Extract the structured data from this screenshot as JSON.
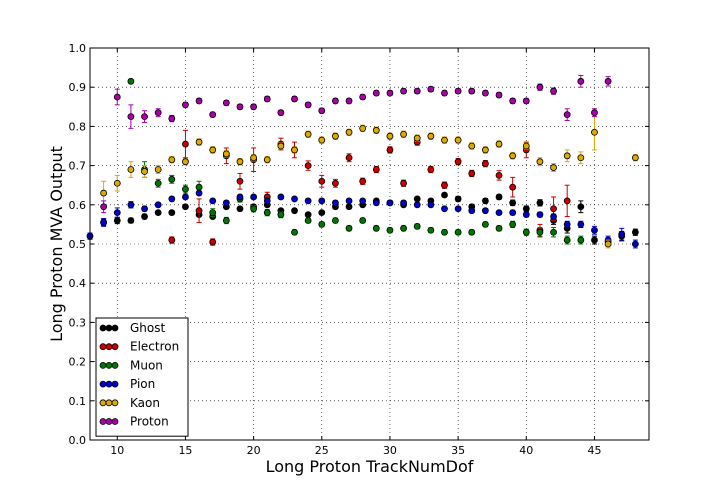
{
  "chart_data": {
    "type": "scatter",
    "xlabel": "Long Proton TrackNumDof",
    "ylabel": "Long Proton MVA Output",
    "xlim": [
      8,
      49
    ],
    "ylim": [
      0.0,
      1.0
    ],
    "xticks": [
      "10",
      "15",
      "20",
      "25",
      "30",
      "35",
      "40",
      "45"
    ],
    "yticks": [
      "0.0",
      "0.1",
      "0.2",
      "0.3",
      "0.4",
      "0.5",
      "0.6",
      "0.7",
      "0.8",
      "0.9",
      "1.0"
    ],
    "grid": true,
    "legend_position": "bottom-left",
    "series": [
      {
        "name": "Ghost",
        "color": "#000000",
        "x": [
          9,
          10,
          11,
          12,
          13,
          14,
          15,
          16,
          17,
          18,
          19,
          20,
          21,
          22,
          23,
          24,
          25,
          26,
          27,
          28,
          29,
          30,
          31,
          32,
          33,
          34,
          35,
          36,
          37,
          38,
          39,
          40,
          41,
          42,
          43,
          44,
          45,
          46,
          47,
          48
        ],
        "y": [
          0.555,
          0.56,
          0.56,
          0.57,
          0.58,
          0.58,
          0.595,
          0.575,
          0.57,
          0.595,
          0.59,
          0.595,
          0.6,
          0.585,
          0.585,
          0.575,
          0.58,
          0.595,
          0.595,
          0.6,
          0.61,
          0.605,
          0.6,
          0.615,
          0.61,
          0.625,
          0.615,
          0.595,
          0.61,
          0.62,
          0.605,
          0.59,
          0.605,
          0.56,
          0.54,
          0.595,
          0.51,
          0.505,
          0.52,
          0.53
        ],
        "err": [
          0.008,
          0.008,
          0.006,
          0.006,
          0.005,
          0.005,
          0.005,
          0.005,
          0.005,
          0.005,
          0.005,
          0.005,
          0.005,
          0.005,
          0.005,
          0.005,
          0.005,
          0.005,
          0.005,
          0.005,
          0.005,
          0.005,
          0.005,
          0.005,
          0.005,
          0.005,
          0.006,
          0.006,
          0.006,
          0.006,
          0.007,
          0.007,
          0.008,
          0.01,
          0.012,
          0.015,
          0.01,
          0.01,
          0.012,
          0.008
        ]
      },
      {
        "name": "Electron",
        "color": "#cc0000",
        "x": [
          14,
          15,
          16,
          17,
          18,
          19,
          20,
          21,
          22,
          23,
          24,
          25,
          26,
          27,
          28,
          29,
          30,
          31,
          32,
          33,
          34,
          35,
          36,
          37,
          38,
          39,
          40,
          41,
          42,
          43
        ],
        "y": [
          0.51,
          0.755,
          0.585,
          0.505,
          0.725,
          0.66,
          0.715,
          0.62,
          0.755,
          0.74,
          0.7,
          0.66,
          0.655,
          0.72,
          0.66,
          0.69,
          0.74,
          0.655,
          0.76,
          0.69,
          0.65,
          0.71,
          0.68,
          0.705,
          0.675,
          0.645,
          0.74,
          0.535,
          0.59,
          0.61
        ],
        "err": [
          0.008,
          0.035,
          0.03,
          0.008,
          0.02,
          0.02,
          0.03,
          0.012,
          0.015,
          0.02,
          0.012,
          0.015,
          0.01,
          0.01,
          0.008,
          0.008,
          0.008,
          0.008,
          0.008,
          0.008,
          0.008,
          0.008,
          0.008,
          0.008,
          0.012,
          0.025,
          0.02,
          0.015,
          0.03,
          0.04
        ]
      },
      {
        "name": "Muon",
        "color": "#007700",
        "x": [
          11,
          12,
          13,
          14,
          15,
          16,
          17,
          18,
          19,
          20,
          21,
          22,
          23,
          24,
          25,
          26,
          27,
          28,
          29,
          30,
          31,
          32,
          33,
          34,
          35,
          36,
          37,
          38,
          39,
          40,
          41,
          42,
          43,
          44
        ],
        "y": [
          0.915,
          0.69,
          0.655,
          0.665,
          0.64,
          0.645,
          0.58,
          0.56,
          0.615,
          0.59,
          0.58,
          0.575,
          0.53,
          0.56,
          0.55,
          0.56,
          0.54,
          0.56,
          0.54,
          0.535,
          0.54,
          0.545,
          0.535,
          0.53,
          0.53,
          0.53,
          0.55,
          0.54,
          0.55,
          0.53,
          0.53,
          0.53,
          0.51,
          0.51
        ],
        "err": [
          0.005,
          0.02,
          0.01,
          0.01,
          0.01,
          0.015,
          0.01,
          0.008,
          0.008,
          0.008,
          0.008,
          0.008,
          0.006,
          0.006,
          0.006,
          0.006,
          0.006,
          0.006,
          0.006,
          0.006,
          0.006,
          0.006,
          0.006,
          0.006,
          0.006,
          0.006,
          0.006,
          0.006,
          0.008,
          0.008,
          0.012,
          0.012,
          0.01,
          0.01
        ]
      },
      {
        "name": "Pion",
        "color": "#0000cc",
        "x": [
          8,
          9,
          10,
          11,
          12,
          13,
          14,
          15,
          16,
          17,
          18,
          19,
          20,
          21,
          22,
          23,
          24,
          25,
          26,
          27,
          28,
          29,
          30,
          31,
          32,
          33,
          34,
          35,
          36,
          37,
          38,
          39,
          40,
          41,
          42,
          43,
          44,
          45,
          46,
          47,
          48
        ],
        "y": [
          0.52,
          0.555,
          0.58,
          0.6,
          0.59,
          0.6,
          0.615,
          0.62,
          0.63,
          0.61,
          0.605,
          0.62,
          0.62,
          0.61,
          0.62,
          0.615,
          0.61,
          0.61,
          0.605,
          0.61,
          0.61,
          0.605,
          0.605,
          0.605,
          0.6,
          0.6,
          0.59,
          0.59,
          0.585,
          0.585,
          0.58,
          0.58,
          0.575,
          0.575,
          0.57,
          0.55,
          0.55,
          0.535,
          0.51,
          0.525,
          0.5
        ],
        "err": [
          0.008,
          0.01,
          0.012,
          0.008,
          0.006,
          0.005,
          0.005,
          0.005,
          0.005,
          0.005,
          0.005,
          0.005,
          0.005,
          0.005,
          0.005,
          0.005,
          0.005,
          0.005,
          0.005,
          0.005,
          0.005,
          0.005,
          0.005,
          0.005,
          0.005,
          0.005,
          0.005,
          0.005,
          0.005,
          0.005,
          0.005,
          0.006,
          0.006,
          0.006,
          0.006,
          0.008,
          0.008,
          0.01,
          0.01,
          0.015,
          0.01
        ]
      },
      {
        "name": "Kaon",
        "color": "#ddaa00",
        "x": [
          9,
          10,
          11,
          12,
          13,
          14,
          15,
          16,
          17,
          18,
          19,
          20,
          21,
          22,
          23,
          24,
          25,
          26,
          27,
          28,
          29,
          30,
          31,
          32,
          33,
          34,
          35,
          36,
          37,
          38,
          39,
          40,
          41,
          42,
          43,
          44,
          45,
          46,
          48
        ],
        "y": [
          0.63,
          0.655,
          0.69,
          0.685,
          0.69,
          0.715,
          0.71,
          0.76,
          0.74,
          0.73,
          0.71,
          0.72,
          0.715,
          0.75,
          0.74,
          0.78,
          0.765,
          0.775,
          0.785,
          0.795,
          0.79,
          0.775,
          0.78,
          0.77,
          0.775,
          0.765,
          0.765,
          0.75,
          0.74,
          0.755,
          0.725,
          0.75,
          0.71,
          0.695,
          0.725,
          0.72,
          0.785,
          0.5,
          0.72
        ],
        "err": [
          0.03,
          0.02,
          0.02,
          0.015,
          0.01,
          0.008,
          0.008,
          0.008,
          0.008,
          0.008,
          0.008,
          0.008,
          0.008,
          0.008,
          0.008,
          0.008,
          0.008,
          0.008,
          0.008,
          0.008,
          0.008,
          0.008,
          0.008,
          0.008,
          0.008,
          0.008,
          0.008,
          0.008,
          0.008,
          0.008,
          0.008,
          0.008,
          0.01,
          0.01,
          0.015,
          0.015,
          0.045,
          0.01,
          0.008
        ]
      },
      {
        "name": "Proton",
        "color": "#aa00aa",
        "x": [
          9,
          10,
          11,
          12,
          13,
          14,
          15,
          16,
          17,
          18,
          19,
          20,
          21,
          22,
          23,
          24,
          25,
          26,
          27,
          28,
          29,
          30,
          31,
          32,
          33,
          34,
          35,
          36,
          37,
          38,
          39,
          40,
          41,
          42,
          43,
          44,
          45,
          46
        ],
        "y": [
          0.595,
          0.875,
          0.825,
          0.825,
          0.835,
          0.82,
          0.855,
          0.865,
          0.83,
          0.86,
          0.85,
          0.85,
          0.87,
          0.835,
          0.87,
          0.855,
          0.84,
          0.865,
          0.865,
          0.875,
          0.885,
          0.885,
          0.89,
          0.89,
          0.895,
          0.885,
          0.89,
          0.89,
          0.885,
          0.88,
          0.865,
          0.865,
          0.9,
          0.89,
          0.83,
          0.915,
          0.835,
          0.915
        ],
        "err": [
          0.015,
          0.02,
          0.03,
          0.015,
          0.01,
          0.008,
          0.006,
          0.006,
          0.006,
          0.006,
          0.006,
          0.006,
          0.006,
          0.006,
          0.006,
          0.006,
          0.006,
          0.006,
          0.006,
          0.006,
          0.006,
          0.006,
          0.006,
          0.006,
          0.006,
          0.006,
          0.006,
          0.006,
          0.006,
          0.006,
          0.006,
          0.006,
          0.008,
          0.008,
          0.015,
          0.015,
          0.01,
          0.012
        ]
      }
    ]
  }
}
